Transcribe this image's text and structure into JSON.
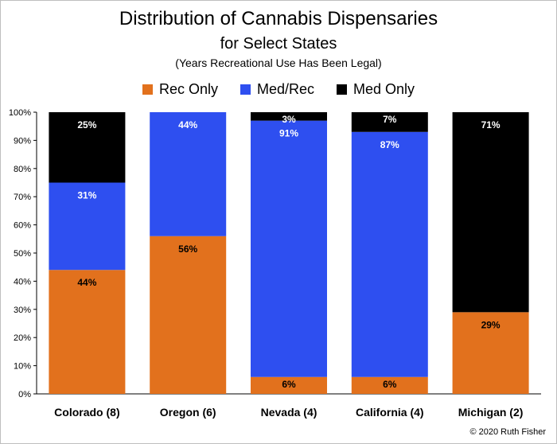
{
  "chart_data": {
    "type": "bar",
    "stacked": true,
    "title": "Distribution of Cannabis Dispensaries",
    "subtitle": "for Select States",
    "subsubtitle": "(Years Recreational Use Has Been Legal)",
    "categories": [
      "Colorado (8)",
      "Oregon (6)",
      "Nevada (4)",
      "California (4)",
      "Michigan (2)"
    ],
    "series": [
      {
        "name": "Rec Only",
        "color": "#e2711d",
        "values": [
          44,
          56,
          6,
          6,
          29
        ],
        "labels": [
          "44%",
          "56%",
          "6%",
          "6%",
          "29%"
        ],
        "label_color": "#000000"
      },
      {
        "name": "Med/Rec",
        "color": "#2e4ff0",
        "values": [
          31,
          44,
          91,
          87,
          0
        ],
        "labels": [
          "31%",
          "44%",
          "91%",
          "87%",
          ""
        ],
        "label_color": "#ffffff"
      },
      {
        "name": "Med Only",
        "color": "#000000",
        "values": [
          25,
          0,
          3,
          7,
          71
        ],
        "labels": [
          "25%",
          "",
          "3%",
          "7%",
          "71%"
        ],
        "label_color": "#ffffff"
      }
    ],
    "y_ticks": [
      "0%",
      "10%",
      "20%",
      "30%",
      "40%",
      "50%",
      "60%",
      "70%",
      "80%",
      "90%",
      "100%"
    ],
    "ylim": [
      0,
      100
    ],
    "legend_position": "top",
    "grid": false,
    "footer": "© 2020 Ruth Fisher"
  }
}
